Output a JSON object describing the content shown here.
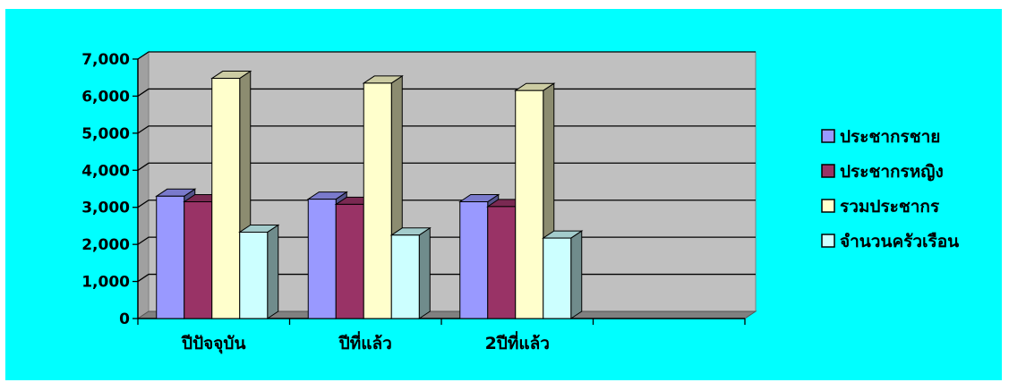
{
  "chart_data": {
    "type": "bar",
    "style": "3d-clustered-column",
    "categories": [
      "ปีปัจจุบัน",
      "ปีที่แล้ว",
      "2ปีที่แล้ว"
    ],
    "series": [
      {
        "name": "ประชากรชาย",
        "color": "#9999ff",
        "values": [
          3300,
          3220,
          3150
        ]
      },
      {
        "name": "ประชากรหญิง",
        "color": "#993366",
        "values": [
          3150,
          3080,
          3020
        ]
      },
      {
        "name": "รวมประชากร",
        "color": "#ffffcc",
        "values": [
          6480,
          6350,
          6150
        ]
      },
      {
        "name": "จำนวนครัวเรือน",
        "color": "#ccffff",
        "values": [
          2330,
          2250,
          2170
        ]
      }
    ],
    "ylim": [
      0,
      7000
    ],
    "yticks": [
      0,
      1000,
      2000,
      3000,
      4000,
      5000,
      6000,
      7000
    ],
    "ytick_labels": [
      "0",
      "1,000",
      "2,000",
      "3,000",
      "4,000",
      "5,000",
      "6,000",
      "7,000"
    ],
    "grid": true,
    "legend_position": "right",
    "title": "",
    "xlabel": "",
    "ylabel": ""
  },
  "colors": {
    "background": "#00ffff",
    "plot_wall": "#c0c0c0",
    "floor": "#808080"
  }
}
